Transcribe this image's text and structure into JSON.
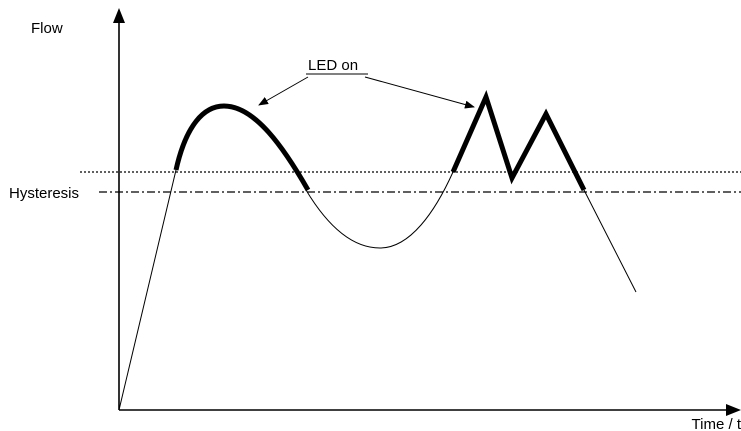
{
  "labels": {
    "y_axis": "Flow",
    "x_axis": "Time / t",
    "hysteresis": "Hysteresis",
    "led_on": "LED on"
  },
  "colors": {
    "stroke": "#000000",
    "background": "#ffffff"
  }
}
